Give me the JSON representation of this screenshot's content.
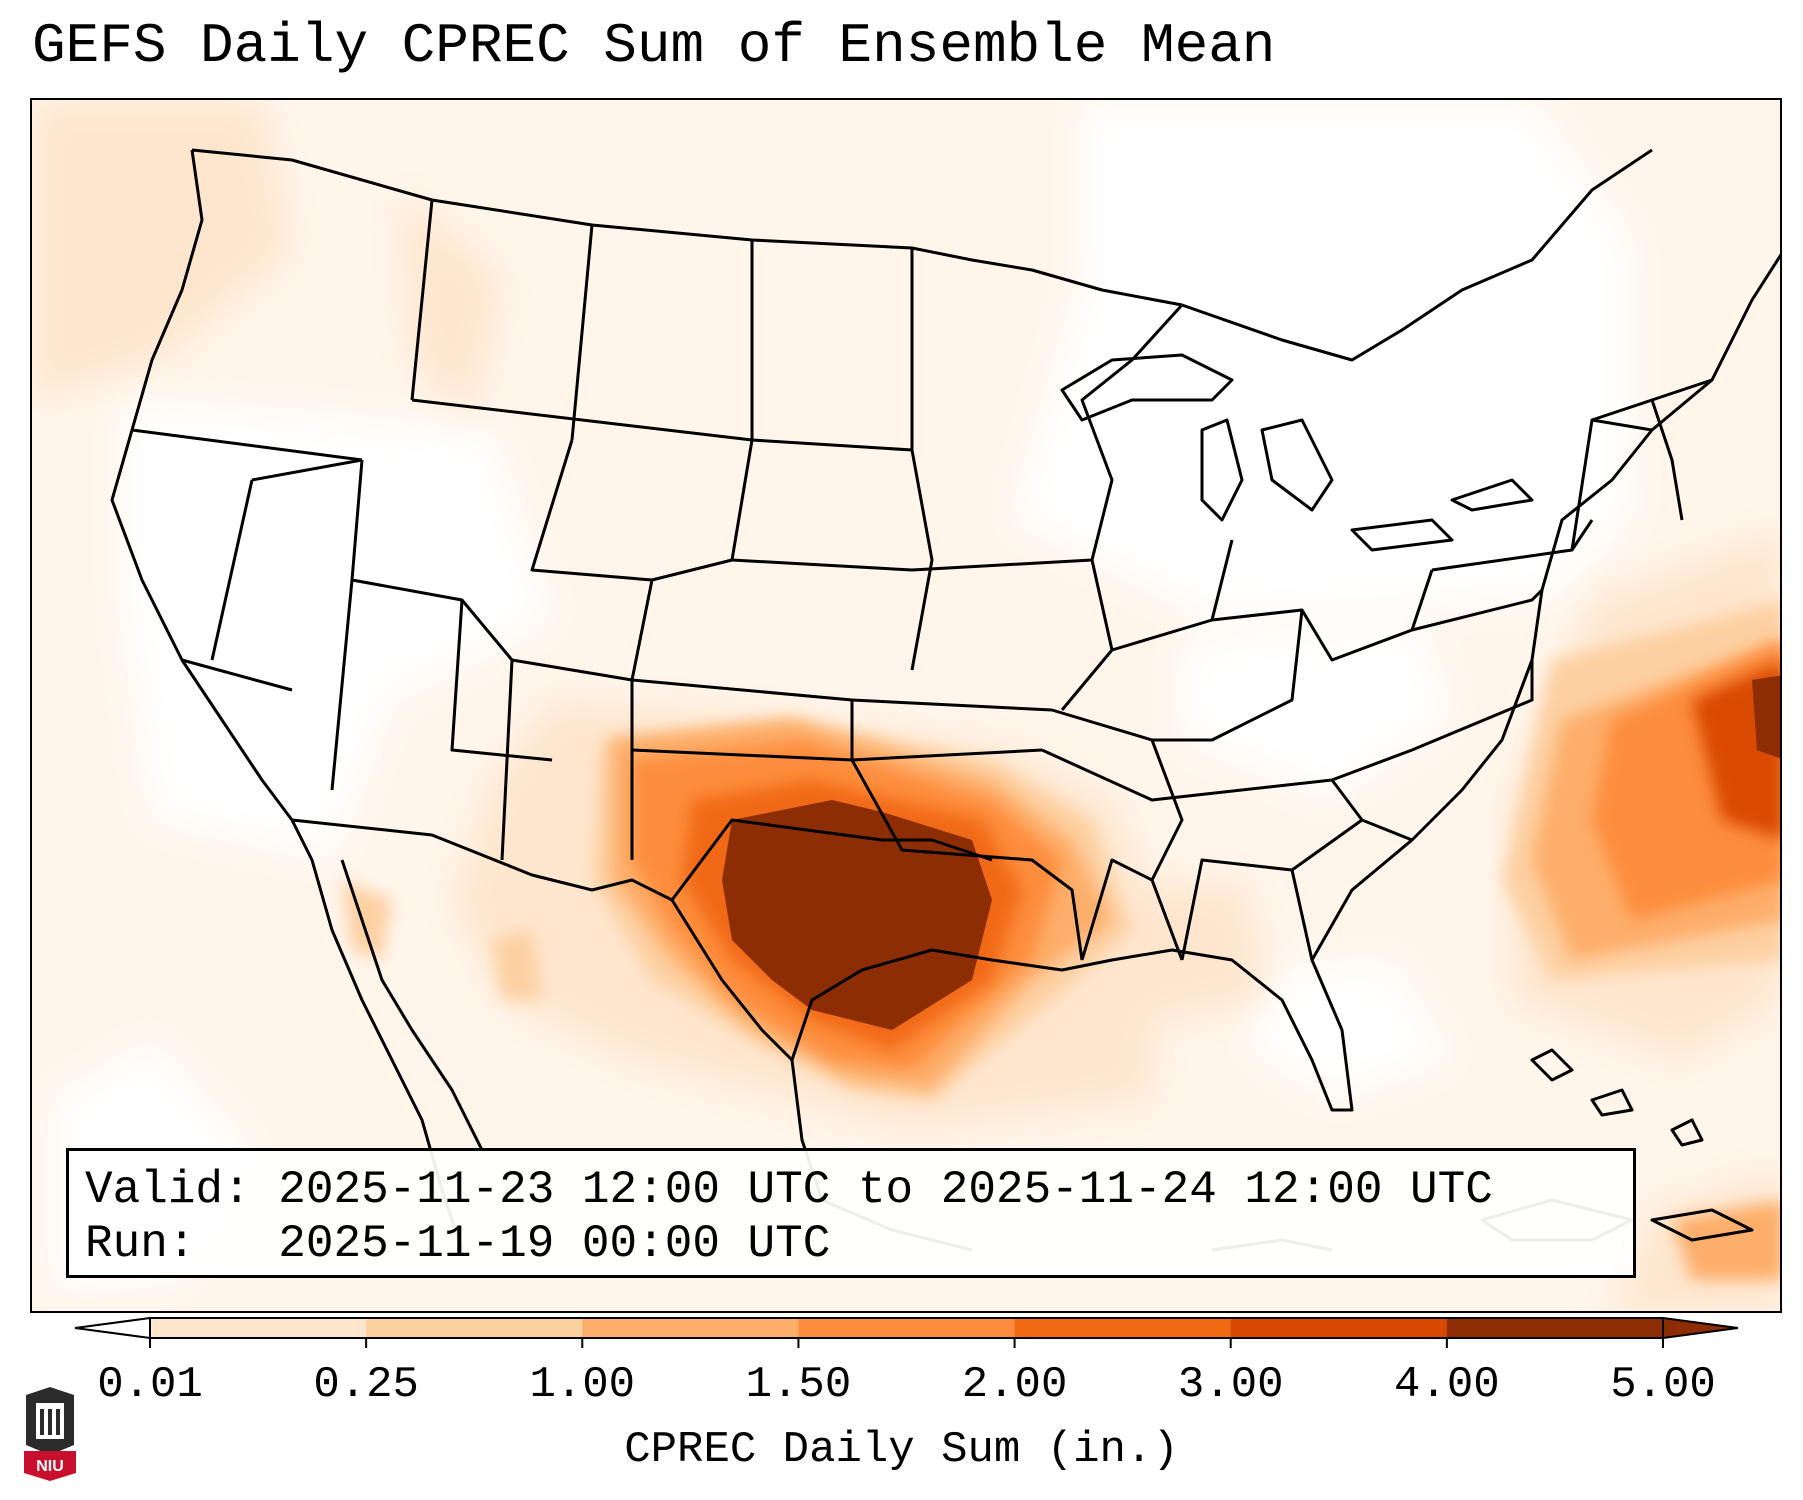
{
  "title": "GEFS Daily CPREC Sum of Ensemble Mean",
  "info": {
    "valid_label": "Valid:",
    "valid_value": "2025-11-23 12:00 UTC to 2025-11-24 12:00 UTC",
    "run_label": "Run:",
    "run_value": "2025-11-19 00:00 UTC"
  },
  "colorbar": {
    "title": "CPREC Daily Sum (in.)",
    "ticks": [
      "0.01",
      "0.25",
      "1.00",
      "1.50",
      "2.00",
      "3.00",
      "4.00",
      "5.00"
    ],
    "colors": [
      "#fff5eb",
      "#fee6ce",
      "#fdd0a2",
      "#fdae6b",
      "#fd8d3c",
      "#f16913",
      "#d94801",
      "#8c2d04"
    ],
    "extend_low_color": "#ffffff",
    "extend_high_color": "#8c2d04"
  },
  "logo": {
    "text": "NIU",
    "icon": "university-seal-icon",
    "color": "#c8102e"
  }
}
